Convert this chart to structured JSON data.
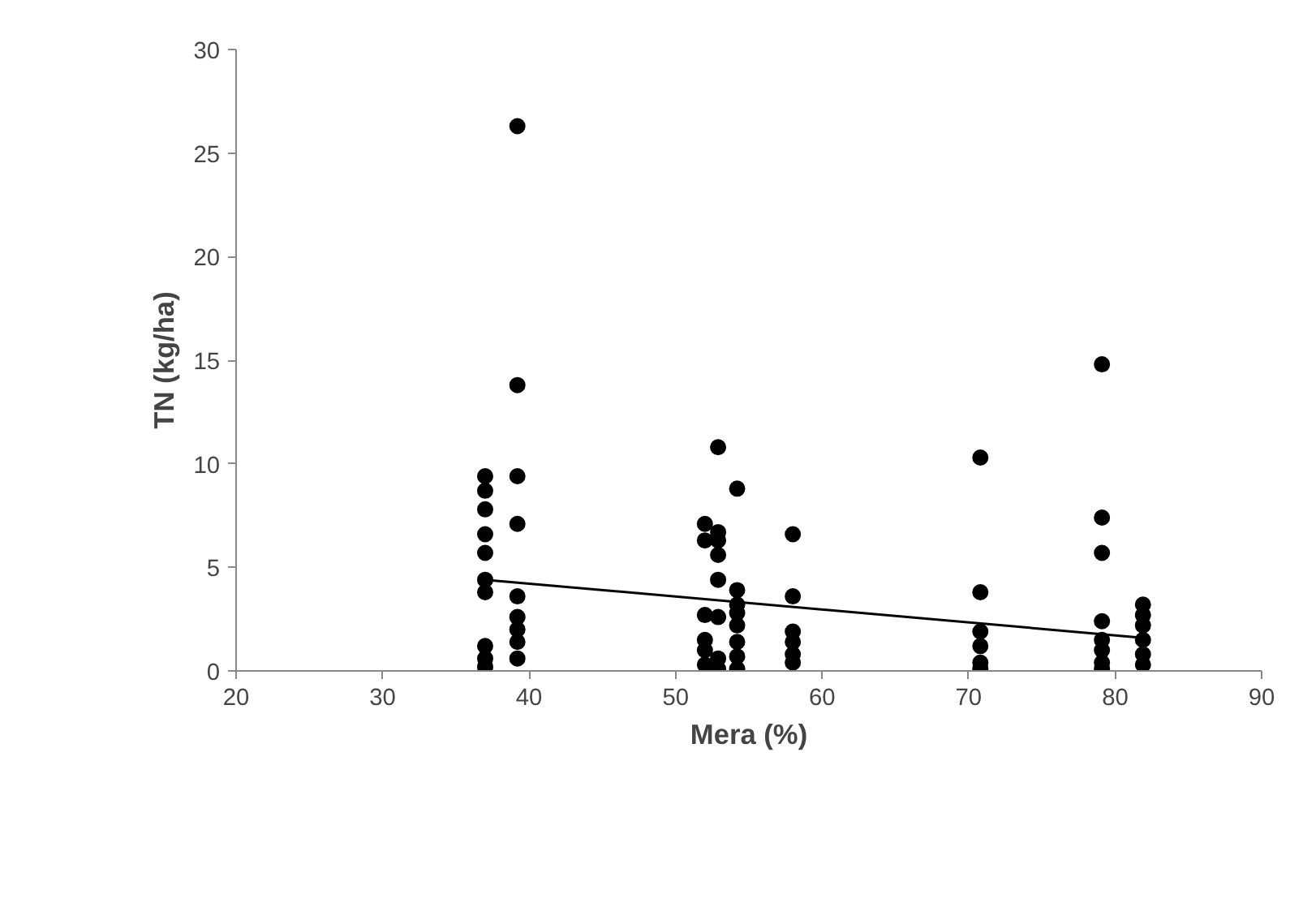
{
  "chart_data": {
    "type": "scatter",
    "xlabel": "Mera (%)",
    "ylabel": "TN (kg/ha)",
    "xlim": [
      20,
      90
    ],
    "xticks": [
      20,
      30,
      40,
      50,
      60,
      70,
      80,
      90
    ],
    "ylim": [
      0,
      30
    ],
    "yticks": [
      0,
      5,
      10,
      15,
      20,
      25,
      30
    ],
    "grid": false,
    "marker": "circle",
    "series": [
      {
        "color": "#000000",
        "x": [
          37,
          37,
          37,
          37,
          37,
          37,
          37,
          37,
          37,
          37,
          39.2,
          39.2,
          39.2,
          39.2,
          39.2,
          39.2,
          39.2,
          39.2,
          39.2,
          52,
          52,
          52,
          52,
          52,
          52,
          52.9,
          52.9,
          52.9,
          52.9,
          52.9,
          52.9,
          52.9,
          52.9,
          54.2,
          54.2,
          54.2,
          54.2,
          54.2,
          54.2,
          54.2,
          54.2,
          58,
          58,
          58,
          58,
          58,
          58,
          70.8,
          70.8,
          70.8,
          70.8,
          70.8,
          70.8,
          79.1,
          79.1,
          79.1,
          79.1,
          79.1,
          79.1,
          79.1,
          79.1,
          81.9,
          81.9,
          81.9,
          81.9,
          81.9,
          81.9
        ],
        "values": [
          9.4,
          8.7,
          7.8,
          6.6,
          5.7,
          4.4,
          3.8,
          1.2,
          0.6,
          0.2,
          26.3,
          13.8,
          9.4,
          7.1,
          3.6,
          2.6,
          2.0,
          1.4,
          0.6,
          7.1,
          6.3,
          2.7,
          1.5,
          1.0,
          0.3,
          10.8,
          6.7,
          6.3,
          5.6,
          4.4,
          2.6,
          0.6,
          0.1,
          8.8,
          3.9,
          3.2,
          2.8,
          2.2,
          1.4,
          0.7,
          0.1,
          6.6,
          3.6,
          1.9,
          1.4,
          0.8,
          0.4,
          10.3,
          3.8,
          1.9,
          1.2,
          0.4,
          0.1,
          14.8,
          7.4,
          5.7,
          2.4,
          1.5,
          1.0,
          0.4,
          0.1,
          3.2,
          2.7,
          2.2,
          1.5,
          0.8,
          0.3
        ]
      },
      {
        "type": "line",
        "color": "#000000",
        "marker": "none",
        "x": [
          37,
          81.9
        ],
        "values": [
          4.4,
          1.6
        ]
      }
    ]
  }
}
